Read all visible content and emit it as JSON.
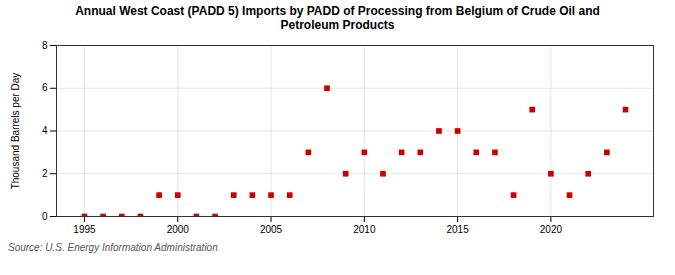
{
  "chart_data": {
    "type": "scatter",
    "title": "Annual West Coast (PADD 5) Imports by PADD of Processing from Belgium of Crude Oil and\nPetroleum Products",
    "ylabel": "Thousand Barrels per Day",
    "annotations": [
      "Source: U.S. Energy Information Administration"
    ],
    "x": [
      1995,
      1996,
      1997,
      1998,
      1999,
      2000,
      2001,
      2002,
      2003,
      2004,
      2005,
      2006,
      2007,
      2008,
      2009,
      2010,
      2011,
      2012,
      2013,
      2014,
      2015,
      2016,
      2017,
      2018,
      2019,
      2020,
      2021,
      2022,
      2023,
      2024
    ],
    "values": [
      0,
      0,
      0,
      0,
      1,
      1,
      0,
      0,
      1,
      1,
      1,
      1,
      3,
      6,
      2,
      3,
      2,
      3,
      3,
      4,
      4,
      3,
      3,
      1,
      5,
      2,
      1,
      2,
      3,
      5
    ],
    "color": "#cc0000",
    "marker": "square",
    "xlim": [
      1993.5,
      2025.5
    ],
    "xticks": [
      1995,
      2000,
      2005,
      2010,
      2015,
      2020
    ],
    "ylim": [
      0,
      8
    ],
    "yticks": [
      0,
      2,
      4,
      6,
      8
    ],
    "grid": true
  }
}
